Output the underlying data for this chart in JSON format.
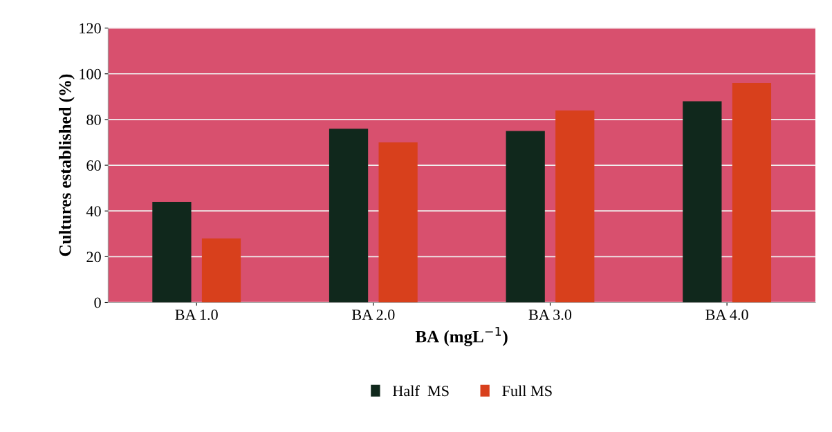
{
  "chart_data": {
    "type": "bar",
    "xlabel": "BA (mgL$^{−1}$)",
    "ylabel": "Cultures established (%)",
    "categories": [
      "BA 1.0",
      "BA 2.0",
      "BA 3.0",
      "BA 4.0"
    ],
    "series": [
      {
        "name": "Half  MS",
        "color": "#10281c",
        "values": [
          44,
          76,
          75,
          88
        ]
      },
      {
        "name": "Full MS",
        "color": "#d8401c",
        "values": [
          28,
          70,
          84,
          96
        ]
      }
    ],
    "ylim": [
      0,
      120
    ],
    "yticks": [
      0,
      20,
      40,
      60,
      80,
      100,
      120
    ],
    "grid": "y",
    "legend": "bottom"
  }
}
